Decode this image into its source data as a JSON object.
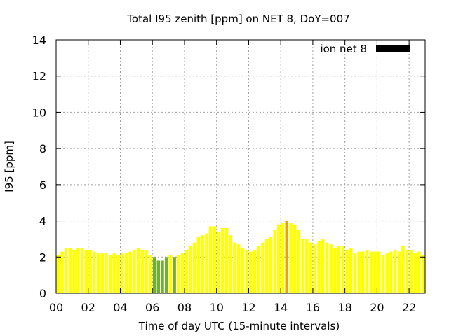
{
  "chart_data": {
    "type": "bar",
    "title": "Total I95 zenith [ppm] on NET 8, DoY=007",
    "xlabel": "Time of day UTC (15-minute intervals)",
    "ylabel": "I95 [ppm]",
    "ylim": [
      0,
      14
    ],
    "yticks": [
      "0",
      "2",
      "4",
      "6",
      "8",
      "10",
      "12",
      "14"
    ],
    "xlim_hours": [
      0,
      23
    ],
    "xticks": [
      "00",
      "02",
      "04",
      "06",
      "08",
      "10",
      "12",
      "14",
      "16",
      "18",
      "20",
      "22"
    ],
    "interval_minutes": 15,
    "start_hour": 0,
    "grid": true,
    "legend_position": "top-right",
    "series": [
      {
        "name": "ion net 8",
        "legend_color": "#000000",
        "values": [
          2.1,
          2.3,
          2.5,
          2.5,
          2.4,
          2.5,
          2.5,
          2.4,
          2.4,
          2.3,
          2.2,
          2.2,
          2.2,
          2.1,
          2.2,
          2.1,
          2.2,
          2.2,
          2.3,
          2.4,
          2.5,
          2.4,
          2.4,
          2.1,
          2.0,
          1.8,
          1.8,
          2.0,
          2.1,
          2.0,
          2.1,
          2.2,
          2.4,
          2.6,
          2.8,
          3.1,
          3.2,
          3.3,
          3.7,
          3.7,
          3.4,
          3.6,
          3.6,
          3.2,
          2.8,
          2.7,
          2.5,
          2.4,
          2.3,
          2.4,
          2.6,
          2.8,
          3.0,
          3.1,
          3.5,
          3.8,
          3.9,
          4.0,
          3.9,
          3.8,
          3.5,
          3.0,
          3.0,
          2.8,
          2.7,
          2.9,
          3.0,
          2.8,
          2.7,
          2.5,
          2.6,
          2.6,
          2.4,
          2.5,
          2.2,
          2.3,
          2.3,
          2.4,
          2.3,
          2.3,
          2.3,
          2.1,
          2.2,
          2.3,
          2.4,
          2.3,
          2.6,
          2.4,
          2.4,
          2.2,
          2.3,
          2.1
        ]
      }
    ],
    "colors": {
      "low": "#70b030",
      "normal": "#ffff00",
      "elevated": "#f0a000",
      "legend": "#000000"
    },
    "color_thresholds": {
      "low_below": 2.05,
      "elevated_at_or_above": 3.95
    }
  }
}
